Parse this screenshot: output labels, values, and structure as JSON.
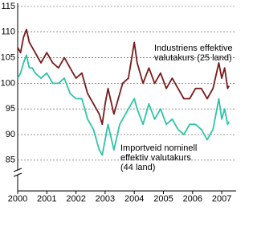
{
  "chart_data": {
    "type": "line",
    "x": [
      2000.0,
      2000.1,
      2000.2,
      2000.3,
      2000.4,
      2000.5,
      2000.6,
      2000.8,
      2001.0,
      2001.2,
      2001.4,
      2001.6,
      2001.8,
      2002.0,
      2002.2,
      2002.4,
      2002.6,
      2002.8,
      2002.9,
      2003.0,
      2003.1,
      2003.3,
      2003.5,
      2003.6,
      2003.8,
      2004.0,
      2004.1,
      2004.3,
      2004.5,
      2004.7,
      2004.9,
      2005.1,
      2005.3,
      2005.5,
      2005.7,
      2005.9,
      2006.1,
      2006.3,
      2006.5,
      2006.7,
      2006.9,
      2007.0,
      2007.1,
      2007.2,
      2007.25
    ],
    "series": [
      {
        "name": "Industriens effektive valutakurs (25 land)",
        "color": "#7a1a1a",
        "values": [
          107,
          106,
          109,
          110.5,
          108,
          107,
          106,
          104,
          106,
          104,
          103,
          105,
          103,
          101,
          102,
          98,
          96,
          94,
          92,
          96,
          99,
          94,
          98,
          100,
          101,
          108,
          104,
          100,
          103,
          100,
          102,
          99,
          101,
          99,
          97,
          97,
          99,
          99,
          97,
          99,
          104,
          101,
          103,
          99,
          99.5
        ]
      },
      {
        "name": "Importveid nominell effektiv valutakurs (44 land)",
        "color": "#2ec4a8",
        "values": [
          101,
          102,
          104,
          105.5,
          103,
          103,
          102,
          101,
          102,
          100,
          100,
          101,
          98,
          97,
          97,
          93,
          91,
          87,
          86,
          89,
          92,
          87,
          92,
          93,
          95,
          97,
          95,
          92,
          96,
          93,
          95,
          92,
          93,
          91,
          90,
          92,
          92,
          91,
          89,
          91,
          97,
          93,
          95,
          92,
          92.5
        ]
      }
    ],
    "annotations": [
      [
        "Industriens effektive",
        "valutakurs (25 land)"
      ],
      [
        "Importveid nominell",
        "effektiv valutakurs",
        "(44 land)"
      ]
    ],
    "xlim": [
      2000,
      2007.3
    ],
    "xticks": [
      2000,
      2001,
      2002,
      2003,
      2004,
      2005,
      2006,
      2007
    ],
    "ylim": [
      79,
      115
    ],
    "yticks": [
      85,
      90,
      95,
      100,
      105,
      110,
      115
    ],
    "grid": true
  }
}
